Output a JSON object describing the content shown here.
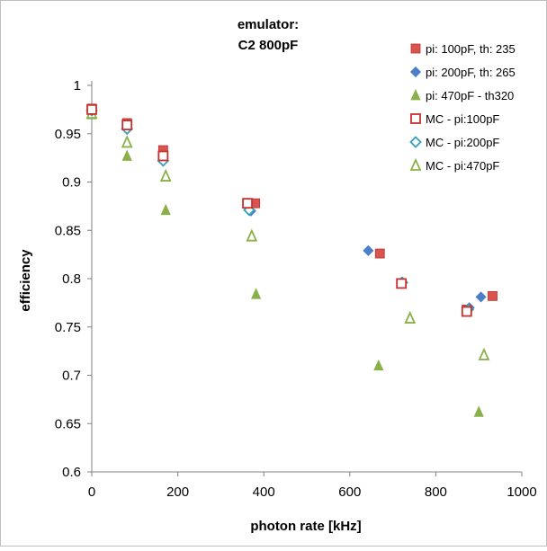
{
  "chart_data": {
    "type": "scatter",
    "title_lines": [
      "emulator:",
      "C2 800pF"
    ],
    "xlabel": "photon rate [kHz]",
    "ylabel": "efficiency",
    "xlim": [
      0,
      1000
    ],
    "ylim": [
      0.6,
      1.0
    ],
    "x_ticks": [
      "0",
      "200",
      "400",
      "600",
      "800",
      "1000"
    ],
    "y_ticks": [
      "0.6",
      "0.65",
      "0.7",
      "0.75",
      "0.8",
      "0.85",
      "0.9",
      "0.95",
      "1"
    ],
    "grid": false,
    "legend_position": "top-right",
    "series": [
      {
        "name": "pi: 100pF, th: 235",
        "marker": "square-filled",
        "color": "#d9534f",
        "points": [
          [
            0,
            0.976
          ],
          [
            82,
            0.961
          ],
          [
            166,
            0.933
          ],
          [
            166,
            0.927
          ],
          [
            380,
            0.878
          ],
          [
            670,
            0.826
          ],
          [
            720,
            0.795
          ],
          [
            872,
            0.768
          ],
          [
            932,
            0.782
          ]
        ]
      },
      {
        "name": "pi: 200pF, th: 265",
        "marker": "diamond-filled",
        "color": "#4a7fc9",
        "points": [
          [
            0,
            0.975
          ],
          [
            82,
            0.956
          ],
          [
            166,
            0.924
          ],
          [
            370,
            0.87
          ],
          [
            643,
            0.829
          ],
          [
            720,
            0.796
          ],
          [
            878,
            0.77
          ],
          [
            905,
            0.781
          ]
        ]
      },
      {
        "name": "pi: 470pF - th320",
        "marker": "triangle-filled",
        "color": "#8ab04a",
        "points": [
          [
            0,
            0.97
          ],
          [
            82,
            0.927
          ],
          [
            172,
            0.871
          ],
          [
            382,
            0.784
          ],
          [
            667,
            0.71
          ],
          [
            900,
            0.662
          ]
        ]
      },
      {
        "name": "MC - pi:100pF",
        "marker": "square-open",
        "color": "#c9302c",
        "points": [
          [
            0,
            0.975
          ],
          [
            82,
            0.959
          ],
          [
            166,
            0.927
          ],
          [
            362,
            0.878
          ],
          [
            720,
            0.795
          ],
          [
            872,
            0.766
          ]
        ]
      },
      {
        "name": "MC - pi:200pF",
        "marker": "diamond-open",
        "color": "#31a0b8",
        "points": [
          [
            0,
            0.974
          ],
          [
            82,
            0.955
          ],
          [
            166,
            0.922
          ],
          [
            366,
            0.871
          ],
          [
            722,
            0.796
          ],
          [
            875,
            0.768
          ]
        ]
      },
      {
        "name": "MC - pi:470pF",
        "marker": "triangle-open",
        "color": "#8ab04a",
        "points": [
          [
            0,
            0.971
          ],
          [
            82,
            0.941
          ],
          [
            172,
            0.906
          ],
          [
            372,
            0.844
          ],
          [
            740,
            0.759
          ],
          [
            912,
            0.721
          ]
        ]
      }
    ]
  }
}
